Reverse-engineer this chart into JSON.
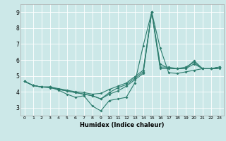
{
  "xlabel": "Humidex (Indice chaleur)",
  "bg_color": "#cce8e8",
  "line_color": "#2d7d6e",
  "xlim": [
    -0.5,
    23.5
  ],
  "ylim": [
    2.5,
    9.5
  ],
  "xticks": [
    0,
    1,
    2,
    3,
    4,
    5,
    6,
    7,
    8,
    9,
    10,
    11,
    12,
    13,
    14,
    15,
    16,
    17,
    18,
    19,
    20,
    21,
    22,
    23
  ],
  "yticks": [
    3,
    4,
    5,
    6,
    7,
    8,
    9
  ],
  "series": [
    {
      "x": [
        0,
        1,
        2,
        3,
        4,
        5,
        6,
        7,
        8,
        9,
        10,
        11,
        12,
        13,
        14,
        15,
        16,
        17,
        18,
        19,
        20,
        21,
        22,
        23
      ],
      "y": [
        4.65,
        4.4,
        4.3,
        4.3,
        4.1,
        3.85,
        3.65,
        3.75,
        3.1,
        2.8,
        3.45,
        3.55,
        3.65,
        4.55,
        6.9,
        9.0,
        6.75,
        5.2,
        5.15,
        5.25,
        5.35,
        5.45,
        5.45,
        5.45
      ]
    },
    {
      "x": [
        0,
        1,
        2,
        3,
        4,
        5,
        6,
        7,
        8,
        9,
        10,
        11,
        12,
        13,
        14,
        15,
        16,
        17,
        18,
        19,
        20,
        21,
        22,
        23
      ],
      "y": [
        4.65,
        4.4,
        4.3,
        4.3,
        4.15,
        4.05,
        3.95,
        3.85,
        3.75,
        3.55,
        3.85,
        4.05,
        4.35,
        4.75,
        5.15,
        9.0,
        5.45,
        5.45,
        5.45,
        5.45,
        5.75,
        5.45,
        5.45,
        5.55
      ]
    },
    {
      "x": [
        0,
        1,
        2,
        3,
        4,
        5,
        6,
        7,
        8,
        9,
        10,
        11,
        12,
        13,
        14,
        15,
        16,
        17,
        18,
        19,
        20,
        21,
        22,
        23
      ],
      "y": [
        4.65,
        4.4,
        4.3,
        4.3,
        4.2,
        4.1,
        4.0,
        3.95,
        3.85,
        3.9,
        4.15,
        4.35,
        4.55,
        4.95,
        5.35,
        9.0,
        5.55,
        5.55,
        5.45,
        5.55,
        5.85,
        5.45,
        5.45,
        5.55
      ]
    },
    {
      "x": [
        0,
        1,
        2,
        3,
        4,
        5,
        6,
        7,
        8,
        9,
        10,
        11,
        12,
        13,
        14,
        15,
        16,
        17,
        18,
        19,
        20,
        21,
        22,
        23
      ],
      "y": [
        4.65,
        4.4,
        4.3,
        4.25,
        4.15,
        4.05,
        3.95,
        3.85,
        3.75,
        3.55,
        3.95,
        4.25,
        4.45,
        4.85,
        5.25,
        9.0,
        5.75,
        5.45,
        5.45,
        5.45,
        5.95,
        5.45,
        5.45,
        5.55
      ]
    }
  ]
}
